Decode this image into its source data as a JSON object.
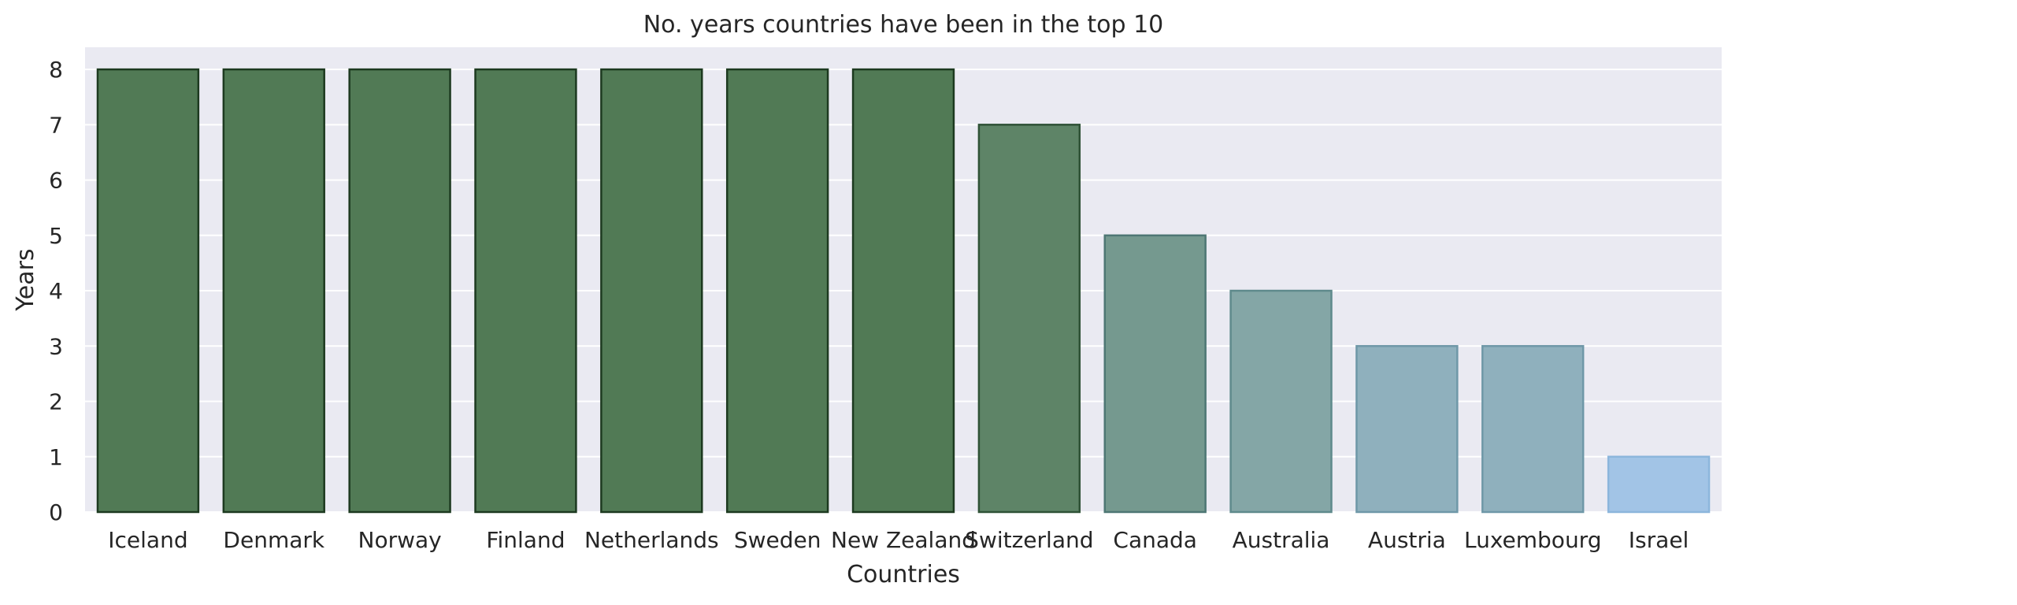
{
  "chart_data": {
    "type": "bar",
    "title": "No. years countries have been in the top 10",
    "xlabel": "Countries",
    "ylabel": "Years",
    "categories": [
      "Iceland",
      "Denmark",
      "Norway",
      "Finland",
      "Netherlands",
      "Sweden",
      "New Zealand",
      "Switzerland",
      "Canada",
      "Australia",
      "Austria",
      "Luxembourg",
      "Israel"
    ],
    "values": [
      8,
      8,
      8,
      8,
      8,
      8,
      8,
      7,
      5,
      4,
      3,
      3,
      1
    ],
    "bar_colors": [
      "#517a55",
      "#517a55",
      "#517a55",
      "#517a55",
      "#517a55",
      "#517a55",
      "#517a55",
      "#5e8467",
      "#75998f",
      "#84a6a6",
      "#8fb0bd",
      "#8fb0bd",
      "#a2c4e6"
    ],
    "bar_edge_colors": [
      "#1d3a20",
      "#1d3a20",
      "#1d3a20",
      "#1d3a20",
      "#1d3a20",
      "#1d3a20",
      "#1d3a20",
      "#2f5236",
      "#4e7774",
      "#5f8a8c",
      "#6f98a8",
      "#6f98a8",
      "#8cb6dc"
    ],
    "yticks": [
      0,
      1,
      2,
      3,
      4,
      5,
      6,
      7,
      8
    ],
    "ylim": [
      0,
      8.4
    ],
    "grid": true,
    "legend": "none",
    "background_color": "#eaeaf2",
    "grid_color": "#ffffff"
  }
}
